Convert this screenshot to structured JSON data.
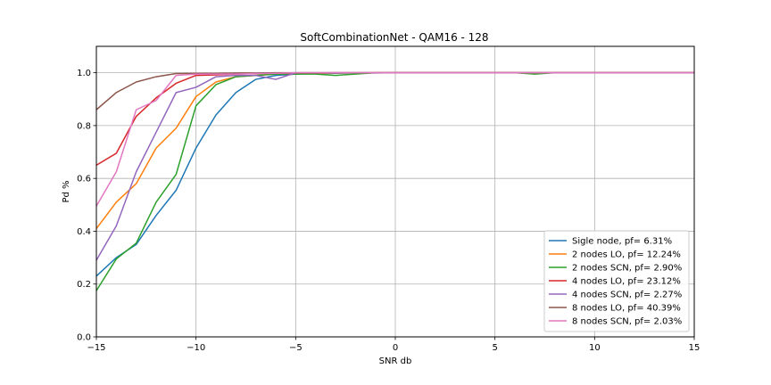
{
  "chart_data": {
    "type": "line",
    "title": "SoftCombinationNet - QAM16 - 128",
    "xlabel": "SNR db",
    "ylabel": "Pd %",
    "xlim": [
      -15,
      15
    ],
    "ylim": [
      0.0,
      1.1
    ],
    "xticks": [
      -15,
      -10,
      -5,
      0,
      5,
      10,
      15
    ],
    "xtick_labels": [
      "−15",
      "−10",
      "−5",
      "0",
      "5",
      "10",
      "15"
    ],
    "yticks": [
      0.0,
      0.2,
      0.4,
      0.6,
      0.8,
      1.0
    ],
    "ytick_labels": [
      "0.0",
      "0.2",
      "0.4",
      "0.6",
      "0.8",
      "1.0"
    ],
    "grid": true,
    "legend_position": "lower-right",
    "x": [
      -15,
      -14,
      -13,
      -12,
      -11,
      -10,
      -9,
      -8,
      -7,
      -6,
      -5,
      -4,
      -3,
      -2,
      -1,
      0,
      1,
      2,
      3,
      4,
      5,
      6,
      7,
      8,
      9,
      10,
      11,
      12,
      13,
      14,
      15
    ],
    "series": [
      {
        "name": "Sigle node, pf= 6.31%",
        "color": "#1f77b4",
        "values": [
          0.23,
          0.3,
          0.35,
          0.46,
          0.555,
          0.715,
          0.84,
          0.925,
          0.975,
          0.99,
          0.995,
          0.997,
          0.998,
          0.999,
          0.999,
          1.0,
          1.0,
          1.0,
          1.0,
          1.0,
          1.0,
          1.0,
          1.0,
          1.0,
          1.0,
          1.0,
          1.0,
          1.0,
          1.0,
          1.0,
          1.0
        ]
      },
      {
        "name": "2 nodes LO, pf= 12.24%",
        "color": "#ff7f0e",
        "values": [
          0.41,
          0.51,
          0.58,
          0.715,
          0.79,
          0.91,
          0.965,
          0.985,
          0.99,
          0.995,
          0.997,
          0.998,
          0.999,
          0.999,
          1.0,
          1.0,
          1.0,
          1.0,
          1.0,
          1.0,
          1.0,
          1.0,
          1.0,
          1.0,
          1.0,
          1.0,
          1.0,
          1.0,
          1.0,
          1.0,
          1.0
        ]
      },
      {
        "name": "2 nodes SCN, pf= 2.90%",
        "color": "#2ca02c",
        "values": [
          0.175,
          0.295,
          0.355,
          0.51,
          0.615,
          0.875,
          0.955,
          0.985,
          0.99,
          0.995,
          0.995,
          0.995,
          0.99,
          0.995,
          1.0,
          1.0,
          1.0,
          1.0,
          1.0,
          1.0,
          1.0,
          1.0,
          0.995,
          1.0,
          1.0,
          1.0,
          1.0,
          1.0,
          1.0,
          1.0,
          1.0
        ]
      },
      {
        "name": "4 nodes LO, pf= 23.12%",
        "color": "#d62728",
        "values": [
          0.65,
          0.695,
          0.835,
          0.905,
          0.96,
          0.99,
          0.992,
          0.995,
          0.997,
          0.998,
          0.999,
          0.999,
          1.0,
          1.0,
          1.0,
          1.0,
          1.0,
          1.0,
          1.0,
          1.0,
          1.0,
          1.0,
          1.0,
          1.0,
          1.0,
          1.0,
          1.0,
          1.0,
          1.0,
          1.0,
          1.0
        ]
      },
      {
        "name": "4 nodes SCN, pf= 2.27%",
        "color": "#9467bd",
        "values": [
          0.29,
          0.42,
          0.625,
          0.775,
          0.925,
          0.945,
          0.985,
          0.99,
          0.99,
          0.975,
          1.0,
          1.0,
          1.0,
          1.0,
          1.0,
          1.0,
          1.0,
          1.0,
          1.0,
          1.0,
          1.0,
          1.0,
          1.0,
          1.0,
          1.0,
          1.0,
          1.0,
          1.0,
          1.0,
          1.0,
          1.0
        ]
      },
      {
        "name": "8 nodes LO, pf= 40.39%",
        "color": "#8c564b",
        "values": [
          0.86,
          0.925,
          0.965,
          0.985,
          0.997,
          0.998,
          0.998,
          0.999,
          0.999,
          1.0,
          1.0,
          1.0,
          1.0,
          1.0,
          1.0,
          1.0,
          1.0,
          1.0,
          1.0,
          1.0,
          1.0,
          1.0,
          1.0,
          1.0,
          1.0,
          1.0,
          1.0,
          1.0,
          1.0,
          1.0,
          1.0
        ]
      },
      {
        "name": "8 nodes SCN, pf= 2.03%",
        "color": "#e377c2",
        "values": [
          0.495,
          0.625,
          0.86,
          0.895,
          0.99,
          0.995,
          0.995,
          0.995,
          0.997,
          0.998,
          1.0,
          1.0,
          1.0,
          1.0,
          1.0,
          1.0,
          1.0,
          1.0,
          1.0,
          1.0,
          1.0,
          1.0,
          1.0,
          1.0,
          1.0,
          1.0,
          1.0,
          1.0,
          1.0,
          1.0,
          1.0
        ]
      }
    ]
  }
}
